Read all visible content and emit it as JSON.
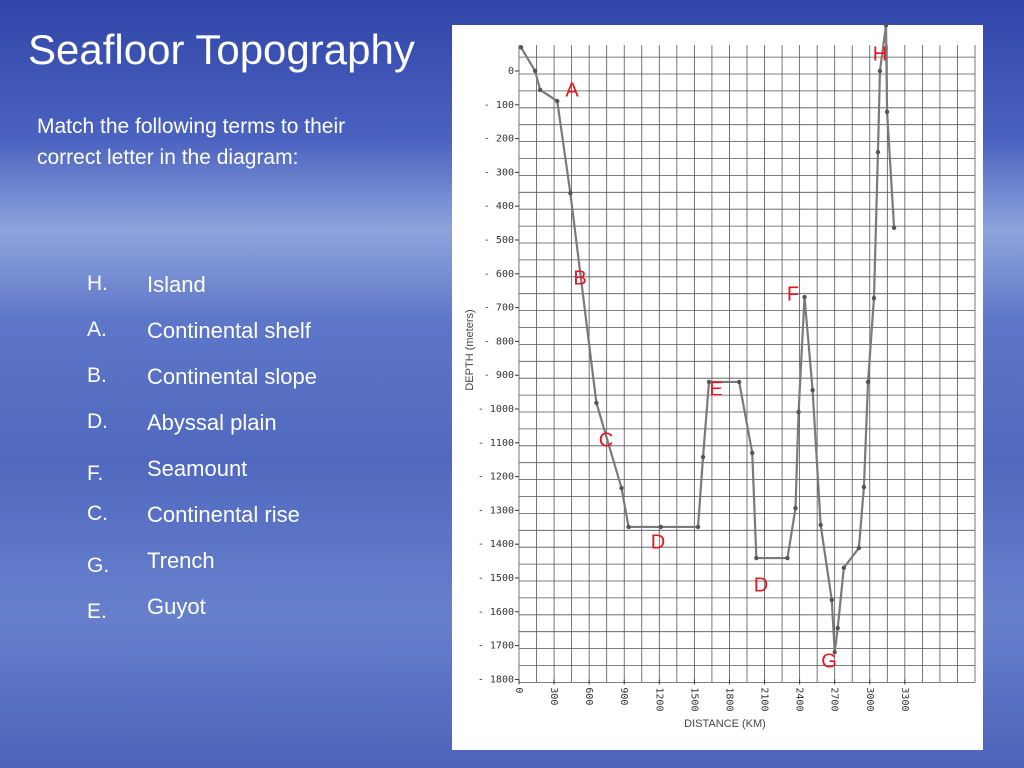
{
  "slide": {
    "title": "Seafloor Topography",
    "intro": "Match the following terms to their correct letter in the diagram:",
    "matches": [
      {
        "letter": "H.",
        "term": "Island"
      },
      {
        "letter": "A.",
        "term": "Continental shelf"
      },
      {
        "letter": "B.",
        "term": "Continental slope"
      },
      {
        "letter": "D.",
        "term": "Abyssal plain"
      },
      {
        "letter": "F.",
        "term": "Seamount"
      },
      {
        "letter": "C.",
        "term": "Continental rise"
      },
      {
        "letter": "G.",
        "term": "Trench"
      },
      {
        "letter": "E.",
        "term": "Guyot"
      }
    ]
  },
  "chart_data": {
    "type": "line",
    "x_label": "DISTANCE (KM)",
    "y_label": "DEPTH (meters)",
    "x": [
      17,
      138,
      181,
      327,
      439,
      662,
      877,
      937,
      1213,
      1531,
      1574,
      1625,
      1883,
      1995,
      2030,
      2296,
      2365,
      2391,
      2442,
      2511,
      2580,
      2675,
      2700,
      2726,
      2778,
      2907,
      2950,
      2985,
      3036,
      3070,
      3087,
      3139,
      3148,
      3208
    ],
    "values": [
      70,
      0,
      -56,
      -89,
      -361,
      -982,
      -1234,
      -1349,
      -1349,
      -1349,
      -1142,
      -920,
      -920,
      -1130,
      -1441,
      -1441,
      -1293,
      -1009,
      -669,
      -944,
      -1343,
      -1565,
      -1719,
      -1648,
      -1470,
      -1411,
      -1231,
      -920,
      -672,
      -240,
      0,
      135,
      -121,
      -464
    ],
    "color": "#7a7a7a",
    "xlim": [
      0,
      3900
    ],
    "ylim": [
      -1800,
      130
    ],
    "xticks": [
      0,
      300,
      600,
      900,
      1200,
      1500,
      1800,
      2100,
      2400,
      2700,
      3000,
      3300
    ],
    "yticks": [
      0,
      {
        "value": -100,
        "label": "- 100"
      },
      {
        "value": -200,
        "label": "- 200"
      },
      {
        "value": -300,
        "label": "- 300"
      },
      {
        "value": -400,
        "label": "- 400"
      },
      {
        "value": -500,
        "label": "- 500"
      },
      {
        "value": -600,
        "label": "- 600"
      },
      {
        "value": -700,
        "label": "- 700"
      },
      {
        "value": -800,
        "label": "- 800"
      },
      {
        "value": -900,
        "label": "- 900"
      },
      {
        "value": -1000,
        "label": "- 1000"
      },
      {
        "value": -1100,
        "label": "- 1100"
      },
      {
        "value": -1200,
        "label": "- 1200"
      },
      {
        "value": -1300,
        "label": "- 1300"
      },
      {
        "value": -1400,
        "label": "- 1400"
      },
      {
        "value": -1500,
        "label": "- 1500"
      },
      {
        "value": -1600,
        "label": "- 1600"
      },
      {
        "value": -1700,
        "label": "- 1700"
      },
      {
        "value": -1800,
        "label": "- 1800"
      }
    ],
    "grid": true,
    "annotations": [
      "A",
      "B",
      "C",
      "D",
      "D",
      "E",
      "F",
      "G",
      "H"
    ],
    "annotation_color": "#e8141e"
  }
}
